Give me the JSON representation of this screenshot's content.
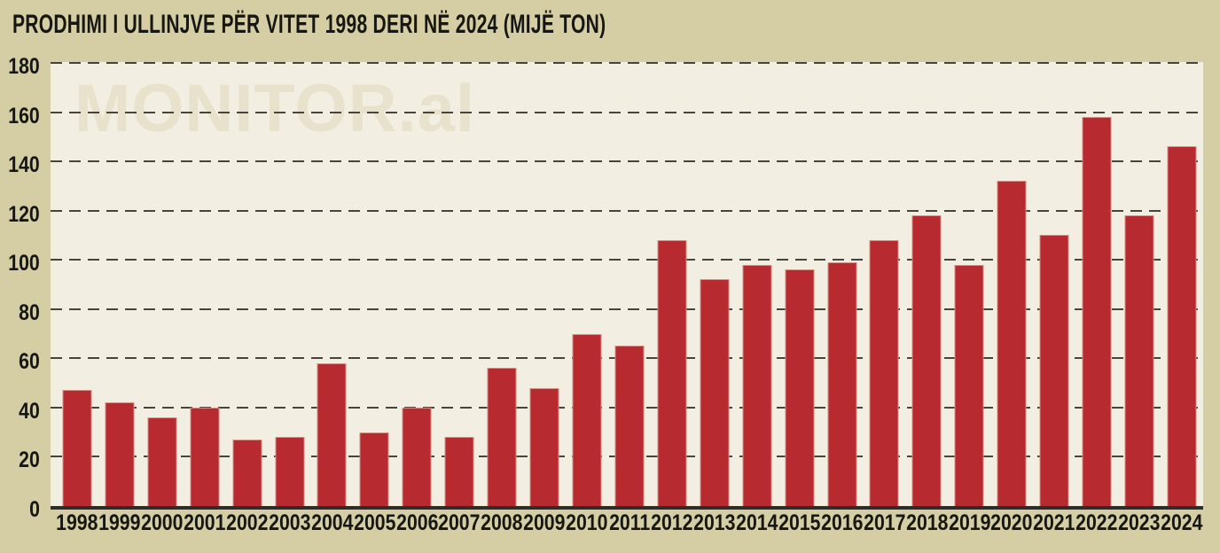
{
  "watermark": "MONITOR.al",
  "colors": {
    "background": "#d5cda3",
    "plot_background": "#f2efe2",
    "bar": "#b72a2f",
    "bar_edge": "#d58e85",
    "gridline": "#46443c",
    "axis_line": "#2e2d27",
    "text": "#161612",
    "watermark": "#e8e2cc"
  },
  "chart_data": {
    "type": "bar",
    "title": "PRODHIMI I ULLINJVE PËR VITET 1998 DERI NË 2024 (MIJË TON)",
    "unit": "mijë ton",
    "categories": [
      "1998",
      "1999",
      "2000",
      "2001",
      "2002",
      "2003",
      "2004",
      "2005",
      "2006",
      "2007",
      "2008",
      "2009",
      "2010",
      "2011",
      "2012",
      "2013",
      "2014",
      "2015",
      "2016",
      "2017",
      "2018",
      "2019",
      "2020",
      "2021",
      "2022",
      "2023",
      "2024"
    ],
    "values": [
      47,
      42,
      36,
      40,
      27,
      28,
      58,
      30,
      40,
      28,
      56,
      48,
      70,
      65,
      108,
      92,
      98,
      96,
      99,
      108,
      118,
      98,
      132,
      110,
      158,
      118,
      146
    ],
    "xlabel": "",
    "ylabel": "",
    "ylim": [
      0,
      180
    ],
    "yticks": [
      0,
      20,
      40,
      60,
      80,
      100,
      120,
      140,
      160,
      180
    ],
    "grid": "horizontal-dashed",
    "legend": "none",
    "bar_color": "#b72a2f"
  }
}
